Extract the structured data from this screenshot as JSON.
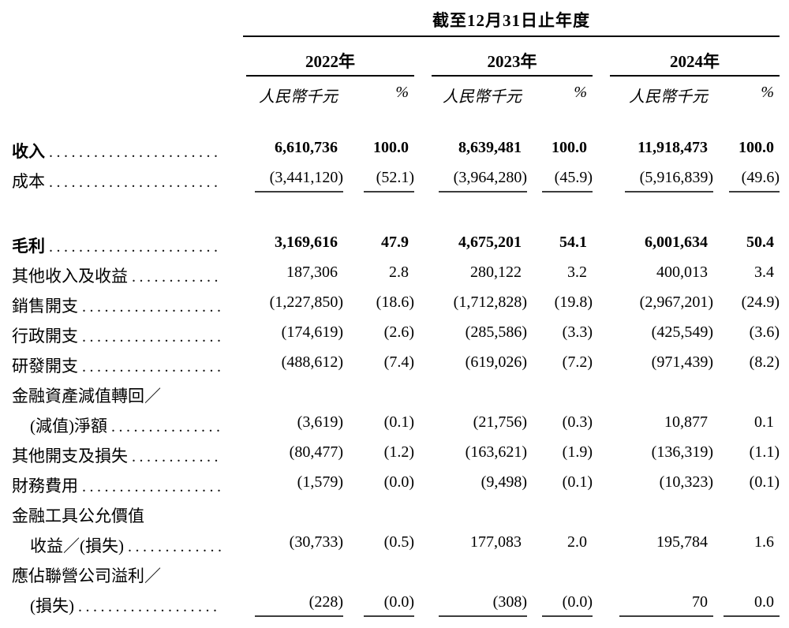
{
  "table": {
    "period_header": "截至12月31日止年度",
    "col_groups": [
      {
        "year": "2022年",
        "unit": "人民幣千元",
        "pct": "%"
      },
      {
        "year": "2023年",
        "unit": "人民幣千元",
        "pct": "%"
      },
      {
        "year": "2024年",
        "unit": "人民幣千元",
        "pct": "%"
      }
    ],
    "rows": [
      {
        "label": "收入",
        "leader": true,
        "bold": true,
        "values": [
          "6,610,736",
          "100.0",
          "8,639,481",
          "100.0",
          "11,918,473",
          "100.0"
        ]
      },
      {
        "label": "成本",
        "leader": true,
        "underline": true,
        "values": [
          "(3,441,120)",
          "(52.1)",
          "(3,964,280)",
          "(45.9)",
          "(5,916,839)",
          "(49.6)"
        ]
      },
      {
        "spacer": true
      },
      {
        "label": "毛利",
        "leader": true,
        "bold": true,
        "values": [
          "3,169,616",
          "47.9",
          "4,675,201",
          "54.1",
          "6,001,634",
          "50.4"
        ]
      },
      {
        "label": "其他收入及收益",
        "leader": true,
        "values": [
          "187,306",
          "2.8",
          "280,122",
          "3.2",
          "400,013",
          "3.4"
        ]
      },
      {
        "label": "銷售開支",
        "leader": true,
        "values": [
          "(1,227,850)",
          "(18.6)",
          "(1,712,828)",
          "(19.8)",
          "(2,967,201)",
          "(24.9)"
        ]
      },
      {
        "label": "行政開支",
        "leader": true,
        "values": [
          "(174,619)",
          "(2.6)",
          "(285,586)",
          "(3.3)",
          "(425,549)",
          "(3.6)"
        ]
      },
      {
        "label": "研發開支",
        "leader": true,
        "values": [
          "(488,612)",
          "(7.4)",
          "(619,026)",
          "(7.2)",
          "(971,439)",
          "(8.2)"
        ]
      },
      {
        "label": "金融資產減值轉回／",
        "leader": false,
        "values": []
      },
      {
        "label": "(減值)淨額",
        "leader": true,
        "indent": true,
        "values": [
          "(3,619)",
          "(0.1)",
          "(21,756)",
          "(0.3)",
          "10,877",
          "0.1"
        ]
      },
      {
        "label": "其他開支及損失",
        "leader": true,
        "values": [
          "(80,477)",
          "(1.2)",
          "(163,621)",
          "(1.9)",
          "(136,319)",
          "(1.1)"
        ]
      },
      {
        "label": "財務費用",
        "leader": true,
        "values": [
          "(1,579)",
          "(0.0)",
          "(9,498)",
          "(0.1)",
          "(10,323)",
          "(0.1)"
        ]
      },
      {
        "label": "金融工具公允價值",
        "leader": false,
        "values": []
      },
      {
        "label": "收益／(損失)",
        "leader": true,
        "indent": true,
        "values": [
          "(30,733)",
          "(0.5)",
          "177,083",
          "2.0",
          "195,784",
          "1.6"
        ]
      },
      {
        "label": "應佔聯營公司溢利／",
        "leader": false,
        "values": []
      },
      {
        "label": "(損失)",
        "leader": true,
        "indent": true,
        "underline": true,
        "values": [
          "(228)",
          "(0.0)",
          "(308)",
          "(0.0)",
          "70",
          "0.0"
        ]
      }
    ]
  }
}
